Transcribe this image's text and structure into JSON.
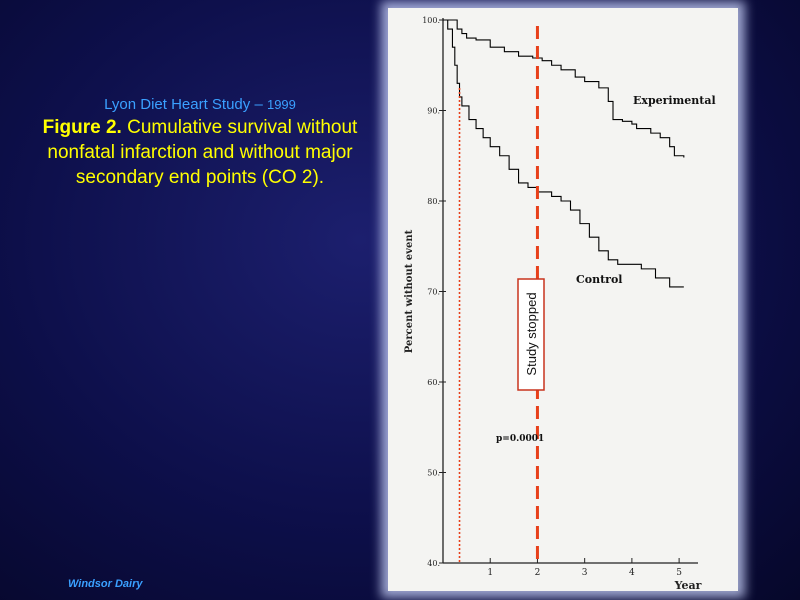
{
  "slide": {
    "study_title": "Lyon Diet Heart Study –",
    "study_year": "1999",
    "figure_label": "Figure 2.",
    "figure_caption": "Cumulative survival without nonfatal infarction and without major secondary end points (CO 2).",
    "footer": "Windsor Dairy"
  },
  "chart_data": {
    "type": "line",
    "title": "",
    "xlabel": "Year",
    "ylabel": "Percent without event",
    "xlim": [
      0,
      5.4
    ],
    "ylim": [
      40,
      100
    ],
    "x_ticks": [
      1,
      2,
      3,
      4,
      5
    ],
    "y_ticks": [
      40,
      50,
      60,
      70,
      80,
      90,
      100
    ],
    "series": [
      {
        "name": "Experimental",
        "points": [
          [
            0,
            100
          ],
          [
            0.2,
            100
          ],
          [
            0.3,
            99
          ],
          [
            0.4,
            98.5
          ],
          [
            0.5,
            98
          ],
          [
            0.7,
            97.8
          ],
          [
            1.0,
            97
          ],
          [
            1.3,
            96.5
          ],
          [
            1.6,
            96
          ],
          [
            1.9,
            95.8
          ],
          [
            2.1,
            95.5
          ],
          [
            2.3,
            95
          ],
          [
            2.5,
            94.5
          ],
          [
            2.8,
            93.7
          ],
          [
            3.0,
            93.2
          ],
          [
            3.3,
            92.5
          ],
          [
            3.5,
            91
          ],
          [
            3.6,
            89
          ],
          [
            3.8,
            88.8
          ],
          [
            4.0,
            88.5
          ],
          [
            4.1,
            88
          ],
          [
            4.4,
            87.5
          ],
          [
            4.6,
            87
          ],
          [
            4.8,
            86
          ],
          [
            4.9,
            85
          ],
          [
            5.1,
            84.8
          ]
        ],
        "color": "#000000"
      },
      {
        "name": "Control",
        "points": [
          [
            0,
            100
          ],
          [
            0.1,
            99
          ],
          [
            0.2,
            97
          ],
          [
            0.25,
            95
          ],
          [
            0.3,
            93
          ],
          [
            0.35,
            91.5
          ],
          [
            0.4,
            90.5
          ],
          [
            0.55,
            89
          ],
          [
            0.7,
            88
          ],
          [
            0.85,
            87
          ],
          [
            1.0,
            86
          ],
          [
            1.2,
            85
          ],
          [
            1.4,
            83.5
          ],
          [
            1.6,
            82
          ],
          [
            1.8,
            81.5
          ],
          [
            2.0,
            81
          ],
          [
            2.3,
            80.5
          ],
          [
            2.5,
            80
          ],
          [
            2.7,
            79
          ],
          [
            2.9,
            77.5
          ],
          [
            3.1,
            76
          ],
          [
            3.3,
            74.5
          ],
          [
            3.5,
            73.5
          ],
          [
            3.7,
            73
          ],
          [
            4.0,
            73
          ],
          [
            4.2,
            72.5
          ],
          [
            4.5,
            71.5
          ],
          [
            4.8,
            70.5
          ],
          [
            5.1,
            70.5
          ]
        ],
        "color": "#000000"
      }
    ],
    "annotations": [
      {
        "id": "study_stopped",
        "text": "Study stopped",
        "x": 2.0,
        "color": "#e8401a",
        "style": "dashed"
      },
      {
        "id": "early_marker",
        "x": 0.35,
        "color": "#e8401a",
        "style": "dotted"
      },
      {
        "id": "pvalue",
        "text": "p=0.0001"
      }
    ]
  }
}
